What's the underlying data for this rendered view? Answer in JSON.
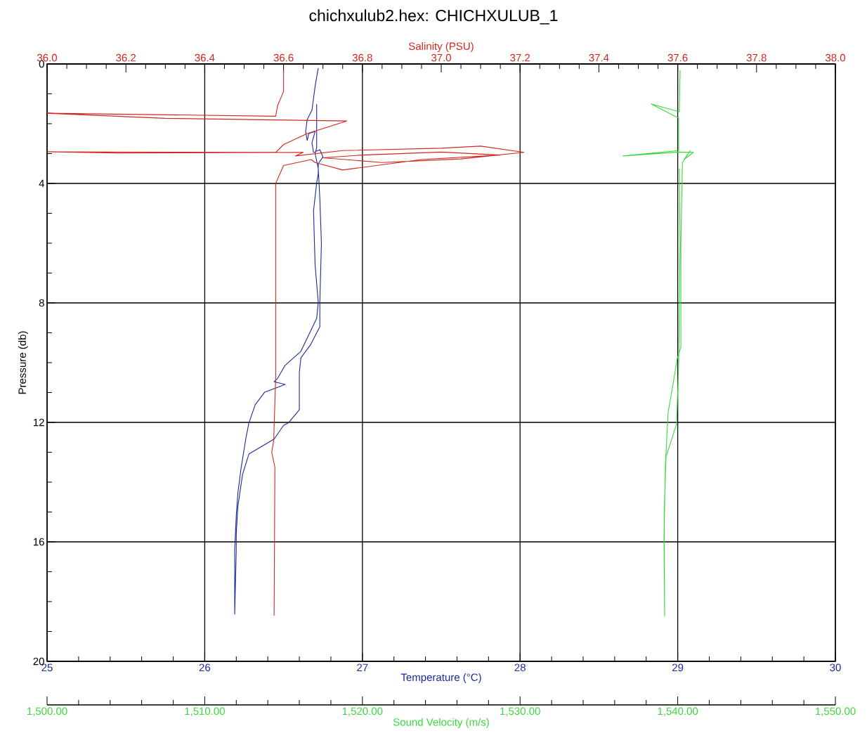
{
  "chart_data": [
    {
      "type": "line",
      "title": "chichxulub2.hex: CHICHXULUB_1",
      "xlabel": "Temperature (°C)",
      "x2label": "Salinity (PSU)",
      "ylabel": "Pressure (db)",
      "xlim": [
        25,
        30
      ],
      "xticks": [
        25,
        {
          "value": 25.2,
          "label": null
        },
        {
          "value": 25.4,
          "label": null
        },
        {
          "value": 25.6,
          "label": null
        },
        {
          "value": 25.8,
          "label": null
        },
        26,
        {
          "value": 26.2,
          "label": null
        },
        {
          "value": 26.4,
          "label": null
        },
        {
          "value": 26.6,
          "label": null
        },
        {
          "value": 26.8,
          "label": null
        },
        27,
        {
          "value": 27.2,
          "label": null
        },
        {
          "value": 27.4,
          "label": null
        },
        {
          "value": 27.6,
          "label": null
        },
        {
          "value": 27.8,
          "label": null
        },
        28,
        {
          "value": 28.2,
          "label": null
        },
        {
          "value": 28.4,
          "label": null
        },
        {
          "value": 28.6,
          "label": null
        },
        {
          "value": 28.8,
          "label": null
        },
        29,
        {
          "value": 29.2,
          "label": null
        },
        {
          "value": 29.4,
          "label": null
        },
        {
          "value": 29.6,
          "label": null
        },
        {
          "value": 29.8,
          "label": null
        },
        30
      ],
      "x2lim": [
        36,
        38
      ],
      "x2ticks": [
        {
          "value": 36,
          "label": "36.0"
        },
        {
          "value": 36.05,
          "label": null
        },
        {
          "value": 36.1,
          "label": null
        },
        {
          "value": 36.15,
          "label": null
        },
        36.2,
        {
          "value": 36.25,
          "label": null
        },
        {
          "value": 36.3,
          "label": null
        },
        {
          "value": 36.35,
          "label": null
        },
        36.4,
        {
          "value": 36.45,
          "label": null
        },
        {
          "value": 36.5,
          "label": null
        },
        {
          "value": 36.55,
          "label": null
        },
        36.6,
        {
          "value": 36.65,
          "label": null
        },
        {
          "value": 36.7,
          "label": null
        },
        {
          "value": 36.75,
          "label": null
        },
        36.8,
        {
          "value": 36.85,
          "label": null
        },
        {
          "value": 36.9,
          "label": null
        },
        {
          "value": 36.95,
          "label": null
        },
        {
          "value": 37,
          "label": "37.0"
        },
        {
          "value": 37.05,
          "label": null
        },
        {
          "value": 37.1,
          "label": null
        },
        {
          "value": 37.15,
          "label": null
        },
        37.2,
        {
          "value": 37.25,
          "label": null
        },
        {
          "value": 37.3,
          "label": null
        },
        {
          "value": 37.35,
          "label": null
        },
        37.4,
        {
          "value": 37.45,
          "label": null
        },
        {
          "value": 37.5,
          "label": null
        },
        {
          "value": 37.55,
          "label": null
        },
        37.6,
        {
          "value": 37.65,
          "label": null
        },
        {
          "value": 37.7,
          "label": null
        },
        {
          "value": 37.75,
          "label": null
        },
        37.8,
        {
          "value": 37.85,
          "label": null
        },
        {
          "value": 37.9,
          "label": null
        },
        {
          "value": 37.95,
          "label": null
        },
        {
          "value": 38,
          "label": "38.0"
        }
      ],
      "ylim": [
        20,
        0
      ],
      "yticks": [
        0,
        {
          "value": 1,
          "label": null
        },
        {
          "value": 2,
          "label": null
        },
        {
          "value": 3,
          "label": null
        },
        4,
        {
          "value": 5,
          "label": null
        },
        {
          "value": 6,
          "label": null
        },
        {
          "value": 7,
          "label": null
        },
        8,
        {
          "value": 9,
          "label": null
        },
        {
          "value": 10,
          "label": null
        },
        {
          "value": 11,
          "label": null
        },
        12,
        {
          "value": 13,
          "label": null
        },
        {
          "value": 14,
          "label": null
        },
        {
          "value": 15,
          "label": null
        },
        16,
        {
          "value": 17,
          "label": null
        },
        {
          "value": 18,
          "label": null
        },
        {
          "value": 19,
          "label": null
        },
        20
      ],
      "grid": true,
      "series": [
        {
          "color": "#d0281e",
          "axis": "x2",
          "x": [
            36.6,
            36.6,
            36.585,
            36.58,
            36.0,
            36.3,
            36.76,
            36.66,
            36.6,
            36.58,
            36.0,
            36.18,
            36.65,
            36.63,
            36.75,
            37.0,
            37.1,
            37.21,
            37.05,
            36.85,
            36.7,
            36.8,
            37.0,
            37.15,
            36.95,
            36.75,
            36.68,
            36.67,
            36.6,
            36.58,
            36.58,
            36.575,
            36.57,
            36.578,
            36.577,
            36.576
          ],
          "values": [
            0.21,
            0.92,
            1.39,
            1.75,
            1.65,
            1.82,
            1.91,
            2.33,
            2.7,
            2.96,
            2.94,
            2.98,
            2.96,
            3.08,
            2.9,
            2.82,
            2.75,
            2.96,
            3.18,
            3.3,
            3.14,
            3.05,
            2.95,
            3.05,
            3.2,
            3.55,
            3.3,
            3.2,
            3.4,
            4.0,
            10.5,
            12.6,
            13.0,
            13.5,
            16.0,
            18.47
          ]
        },
        {
          "color": "#1c2a9c",
          "x": [
            26.72,
            26.7,
            26.68,
            26.65,
            26.64,
            26.65,
            26.66,
            26.7,
            26.68,
            26.69,
            26.73,
            26.75,
            26.72,
            26.72,
            26.71,
            26.69,
            26.7,
            26.72,
            26.71,
            26.61,
            26.51,
            26.46,
            26.44,
            26.51,
            26.44,
            26.38,
            26.32,
            26.28,
            26.26,
            26.23,
            26.21,
            26.2,
            26.19,
            26.19,
            26.2,
            26.2,
            26.21,
            26.24,
            26.28,
            26.44,
            26.5,
            26.53,
            26.6,
            26.6,
            26.61,
            26.67,
            26.73,
            26.73,
            26.74,
            26.73,
            26.72,
            26.7,
            26.71,
            26.71
          ],
          "values": [
            0.14,
            0.75,
            1.55,
            1.86,
            2.26,
            2.56,
            2.33,
            2.26,
            2.64,
            2.96,
            2.87,
            3.11,
            3.34,
            3.67,
            3.98,
            4.92,
            6.73,
            7.98,
            8.52,
            9.62,
            10.09,
            10.54,
            10.64,
            10.73,
            10.87,
            10.99,
            11.41,
            12.02,
            12.56,
            13.55,
            14.38,
            15.11,
            16.26,
            18.42,
            16.26,
            15.72,
            14.82,
            13.74,
            13.06,
            12.56,
            12.1,
            12.02,
            11.58,
            10.33,
            9.84,
            9.41,
            8.8,
            7.98,
            6.0,
            4.5,
            3.5,
            3.0,
            2.8,
            1.35
          ]
        }
      ]
    },
    {
      "type": "line",
      "xlabel": "Sound Velocity (m/s)",
      "tick_labels": "x",
      "xlim": [
        1500,
        1550
      ],
      "xticks": [
        {
          "value": 1500,
          "label": "1,500.00"
        },
        {
          "value": 1502,
          "label": null
        },
        {
          "value": 1504,
          "label": null
        },
        {
          "value": 1506,
          "label": null
        },
        {
          "value": 1508,
          "label": null
        },
        {
          "value": 1510,
          "label": "1,510.00"
        },
        {
          "value": 1512,
          "label": null
        },
        {
          "value": 1514,
          "label": null
        },
        {
          "value": 1516,
          "label": null
        },
        {
          "value": 1518,
          "label": null
        },
        {
          "value": 1520,
          "label": "1,520.00"
        },
        {
          "value": 1522,
          "label": null
        },
        {
          "value": 1524,
          "label": null
        },
        {
          "value": 1526,
          "label": null
        },
        {
          "value": 1528,
          "label": null
        },
        {
          "value": 1530,
          "label": "1,530.00"
        },
        {
          "value": 1532,
          "label": null
        },
        {
          "value": 1534,
          "label": null
        },
        {
          "value": 1536,
          "label": null
        },
        {
          "value": 1538,
          "label": null
        },
        {
          "value": 1540,
          "label": "1,540.00"
        },
        {
          "value": 1542,
          "label": null
        },
        {
          "value": 1544,
          "label": null
        },
        {
          "value": 1546,
          "label": null
        },
        {
          "value": 1548,
          "label": null
        },
        {
          "value": 1550,
          "label": "1,550.00"
        }
      ],
      "ylim": [
        20,
        0
      ],
      "series": [
        {
          "color": "#3ad83a",
          "x": [
            1540.15,
            1540.1,
            1538.32,
            1540.06,
            1540.06,
            1536.54,
            1540.06,
            1541.0,
            1540.4,
            1540.8,
            1540.3,
            1540.29,
            1540.2,
            1540.2,
            1539.97,
            1539.71,
            1539.39,
            1539.22,
            1539.13,
            1539.17,
            1539.14,
            1539.26,
            1539.93,
            1540.06,
            1540.15,
            1540.1
          ],
          "values": [
            0.21,
            1.6,
            1.34,
            1.81,
            2.9,
            3.08,
            2.95,
            2.96,
            3.2,
            2.9,
            3.3,
            3.5,
            6.07,
            9.48,
            9.86,
            10.7,
            11.67,
            13.4,
            15.84,
            18.49,
            15.0,
            13.15,
            12.05,
            10.0,
            6.0,
            3.5
          ]
        }
      ]
    }
  ]
}
